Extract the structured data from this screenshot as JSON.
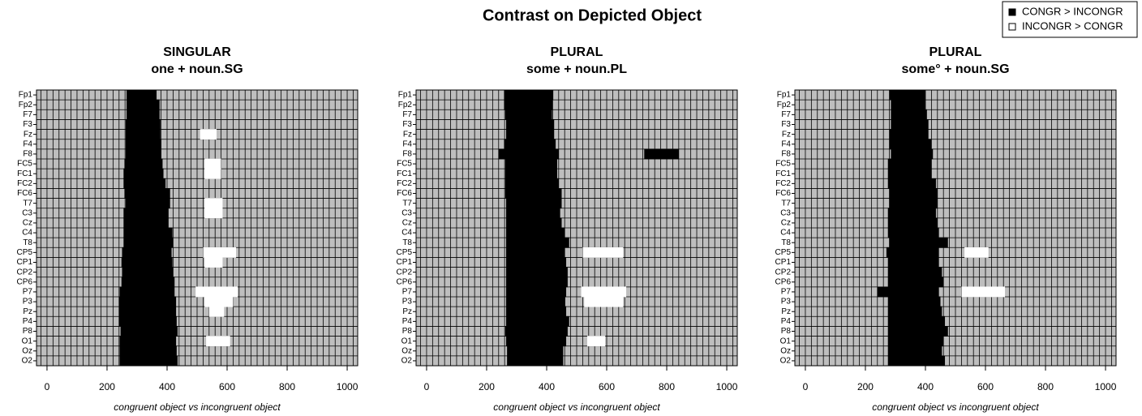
{
  "title": "Contrast on Depicted Object",
  "legend": [
    {
      "name": "CONGR > INCONGR",
      "color": "#000000"
    },
    {
      "name": "INCONGR > CONGR",
      "color": "#ffffff"
    }
  ],
  "chart_data": [
    {
      "type": "interval",
      "title": "SINGULAR",
      "subtitle": "one + noun.SG",
      "xlabel": "congruent object vs incongruent object",
      "categories": [
        "Fp1",
        "Fp2",
        "F7",
        "F3",
        "Fz",
        "F4",
        "F8",
        "FC5",
        "FC1",
        "FC2",
        "FC6",
        "T7",
        "C3",
        "Cz",
        "C4",
        "T8",
        "CP5",
        "CP1",
        "CP2",
        "CP6",
        "P7",
        "P3",
        "Pz",
        "P4",
        "P8",
        "O1",
        "Oz",
        "O2"
      ],
      "xlim": [
        -35,
        1035
      ],
      "xticks": [
        0,
        200,
        400,
        600,
        800,
        1000
      ],
      "xgrid_step": 20,
      "background": "#bebebe",
      "series": [
        {
          "values": [
            [
              [
                265,
                365
              ]
            ],
            [
              [
                265,
                375
              ]
            ],
            [
              [
                265,
                375
              ]
            ],
            [
              [
                262,
                378
              ]
            ],
            [
              [
                262,
                378
              ]
            ],
            [
              [
                262,
                380
              ]
            ],
            [
              [
                262,
                380
              ]
            ],
            [
              [
                258,
                385
              ]
            ],
            [
              [
                255,
                388
              ]
            ],
            [
              [
                255,
                395
              ]
            ],
            [
              [
                258,
                410
              ]
            ],
            [
              [
                262,
                410
              ]
            ],
            [
              [
                255,
                405
              ]
            ],
            [
              [
                255,
                405
              ]
            ],
            [
              [
                255,
                418
              ]
            ],
            [
              [
                255,
                420
              ]
            ],
            [
              [
                250,
                415
              ]
            ],
            [
              [
                248,
                418
              ]
            ],
            [
              [
                250,
                420
              ]
            ],
            [
              [
                248,
                425
              ]
            ],
            [
              [
                242,
                425
              ]
            ],
            [
              [
                240,
                430
              ]
            ],
            [
              [
                240,
                430
              ]
            ],
            [
              [
                240,
                432
              ]
            ],
            [
              [
                245,
                435
              ]
            ],
            [
              [
                242,
                430
              ]
            ],
            [
              [
                242,
                432
              ]
            ],
            [
              [
                242,
                435
              ]
            ]
          ]
        },
        {
          "values": [
            null,
            null,
            null,
            null,
            [
              [
                510,
                565
              ]
            ],
            null,
            null,
            [
              [
                525,
                580
              ]
            ],
            [
              [
                525,
                580
              ]
            ],
            null,
            null,
            [
              [
                525,
                585
              ]
            ],
            [
              [
                525,
                585
              ]
            ],
            null,
            null,
            null,
            [
              [
                520,
                630
              ]
            ],
            [
              [
                525,
                585
              ]
            ],
            null,
            null,
            [
              [
                495,
                635
              ]
            ],
            [
              [
                525,
                620
              ]
            ],
            [
              [
                540,
                590
              ]
            ],
            null,
            null,
            [
              [
                530,
                610
              ]
            ],
            null,
            null
          ]
        }
      ]
    },
    {
      "type": "interval",
      "title": "PLURAL",
      "subtitle": "some + noun.PL",
      "xlabel": "congruent object vs incongruent object",
      "categories": [
        "Fp1",
        "Fp2",
        "F7",
        "F3",
        "Fz",
        "F4",
        "F8",
        "FC5",
        "FC1",
        "FC2",
        "FC6",
        "T7",
        "C3",
        "Cz",
        "C4",
        "T8",
        "CP5",
        "CP1",
        "CP2",
        "CP6",
        "P7",
        "P3",
        "Pz",
        "P4",
        "P8",
        "O1",
        "Oz",
        "O2"
      ],
      "xlim": [
        -35,
        1035
      ],
      "xticks": [
        0,
        200,
        400,
        600,
        800,
        1000
      ],
      "xgrid_step": 20,
      "background": "#bebebe",
      "series": [
        {
          "values": [
            [
              [
                258,
                422
              ]
            ],
            [
              [
                258,
                420
              ]
            ],
            [
              [
                262,
                418
              ]
            ],
            [
              [
                265,
                425
              ]
            ],
            [
              [
                265,
                425
              ]
            ],
            [
              [
                258,
                430
              ]
            ],
            [
              [
                240,
                440
              ],
              [
                725,
                840
              ]
            ],
            [
              [
                262,
                435
              ]
            ],
            [
              [
                262,
                435
              ]
            ],
            [
              [
                262,
                440
              ]
            ],
            [
              [
                262,
                450
              ]
            ],
            [
              [
                265,
                450
              ]
            ],
            [
              [
                265,
                445
              ]
            ],
            [
              [
                265,
                450
              ]
            ],
            [
              [
                265,
                460
              ]
            ],
            [
              [
                265,
                475
              ]
            ],
            [
              [
                265,
                460
              ]
            ],
            [
              [
                265,
                465
              ]
            ],
            [
              [
                265,
                470
              ]
            ],
            [
              [
                265,
                470
              ]
            ],
            [
              [
                265,
                465
              ]
            ],
            [
              [
                265,
                462
              ]
            ],
            [
              [
                265,
                465
              ]
            ],
            [
              [
                265,
                475
              ]
            ],
            [
              [
                262,
                470
              ]
            ],
            [
              [
                265,
                465
              ]
            ],
            [
              [
                268,
                455
              ]
            ],
            [
              [
                268,
                455
              ]
            ]
          ]
        },
        {
          "values": [
            null,
            null,
            null,
            null,
            null,
            null,
            null,
            null,
            null,
            null,
            null,
            null,
            null,
            null,
            null,
            null,
            [
              [
                520,
                655
              ]
            ],
            null,
            null,
            null,
            [
              [
                515,
                665
              ]
            ],
            [
              [
                525,
                655
              ]
            ],
            null,
            null,
            null,
            [
              [
                535,
                595
              ]
            ],
            null,
            null
          ]
        }
      ]
    },
    {
      "type": "interval",
      "title": "PLURAL",
      "subtitle": "some° + noun.SG",
      "xlabel": "congruent object vs incongruent object",
      "categories": [
        "Fp1",
        "Fp2",
        "F7",
        "F3",
        "Fz",
        "F4",
        "F8",
        "FC5",
        "FC1",
        "FC2",
        "FC6",
        "T7",
        "C3",
        "Cz",
        "C4",
        "T8",
        "CP5",
        "CP1",
        "CP2",
        "CP6",
        "P7",
        "P3",
        "Pz",
        "P4",
        "P8",
        "O1",
        "Oz",
        "O2"
      ],
      "xlim": [
        -35,
        1035
      ],
      "xticks": [
        0,
        200,
        400,
        600,
        800,
        1000
      ],
      "xgrid_step": 20,
      "background": "#bebebe",
      "series": [
        {
          "values": [
            [
              [
                280,
                400
              ]
            ],
            [
              [
                285,
                400
              ]
            ],
            [
              [
                285,
                405
              ]
            ],
            [
              [
                285,
                410
              ]
            ],
            [
              [
                280,
                410
              ]
            ],
            [
              [
                280,
                420
              ]
            ],
            [
              [
                285,
                425
              ]
            ],
            [
              [
                275,
                420
              ]
            ],
            [
              [
                275,
                420
              ]
            ],
            [
              [
                275,
                435
              ]
            ],
            [
              [
                280,
                440
              ]
            ],
            [
              [
                280,
                440
              ]
            ],
            [
              [
                275,
                435
              ]
            ],
            [
              [
                275,
                440
              ]
            ],
            [
              [
                275,
                445
              ]
            ],
            [
              [
                280,
                475
              ]
            ],
            [
              [
                270,
                445
              ]
            ],
            [
              [
                275,
                445
              ]
            ],
            [
              [
                275,
                455
              ]
            ],
            [
              [
                275,
                460
              ]
            ],
            [
              [
                240,
                445
              ]
            ],
            [
              [
                275,
                450
              ]
            ],
            [
              [
                275,
                455
              ]
            ],
            [
              [
                275,
                465
              ]
            ],
            [
              [
                275,
                475
              ]
            ],
            [
              [
                275,
                460
              ]
            ],
            [
              [
                275,
                455
              ]
            ],
            [
              [
                275,
                465
              ]
            ]
          ]
        },
        {
          "values": [
            null,
            null,
            null,
            null,
            null,
            null,
            null,
            null,
            null,
            null,
            null,
            null,
            null,
            null,
            null,
            null,
            [
              [
                530,
                610
              ]
            ],
            null,
            null,
            null,
            [
              [
                520,
                665
              ]
            ],
            null,
            null,
            null,
            null,
            null,
            null,
            null
          ]
        }
      ]
    }
  ]
}
